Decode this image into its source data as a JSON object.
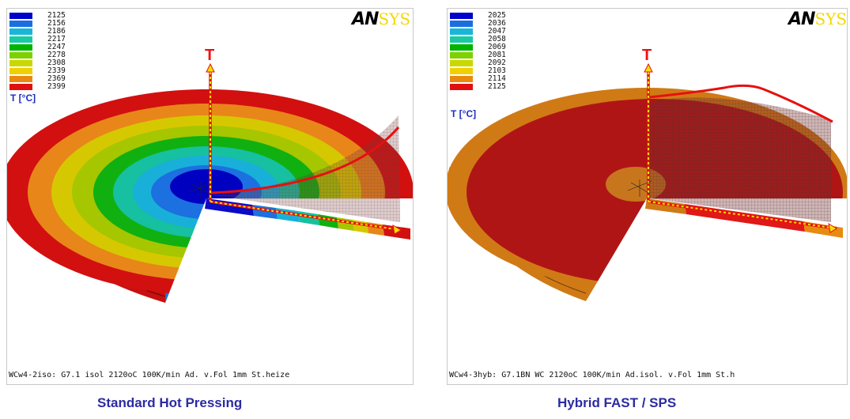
{
  "panels": [
    {
      "legend_values": [
        "2125",
        "2156",
        "2186",
        "2217",
        "2247",
        "2278",
        "2308",
        "2339",
        "2369",
        "2399"
      ],
      "legend_colors": [
        "#0000cc",
        "#1a6fe0",
        "#18b6d8",
        "#19c9a4",
        "#00b400",
        "#7fd000",
        "#c8d800",
        "#f0d000",
        "#e88a10",
        "#e01010"
      ],
      "legend_title": "T [°C]",
      "axis_label": "T",
      "logo_a": "AN",
      "logo_b": "SYS",
      "footer": "WCw4-2iso: G7.1 isol 2120oC 100K/min Ad. v.Fol 1mm St.heize",
      "caption": "Standard Hot Pressing"
    },
    {
      "legend_values": [
        "2025",
        "2036",
        "2047",
        "2058",
        "2069",
        "2081",
        "2092",
        "2103",
        "2114",
        "2125"
      ],
      "legend_colors": [
        "#0000cc",
        "#1a6fe0",
        "#18b6d8",
        "#19c9a4",
        "#00b400",
        "#7fd000",
        "#c8d800",
        "#f0d000",
        "#e88a10",
        "#e01010"
      ],
      "legend_title": "T [°C]",
      "axis_label": "T",
      "logo_a": "AN",
      "logo_b": "SYS",
      "footer": "WCw4-3hyb: G7.1BN WC 2120oC 100K/min Ad.isol. v.Fol 1mm St.h",
      "caption": "Hybrid FAST / SPS"
    }
  ],
  "colors": {
    "caption": "#2b2ba3",
    "legend_title": "#1a2ec0",
    "profile_line": "#e61010",
    "axis_dash": "#f5e000",
    "disk_outer": "#c80a0a",
    "hybrid_rim": "#d07a16",
    "hybrid_core": "#b01515"
  }
}
